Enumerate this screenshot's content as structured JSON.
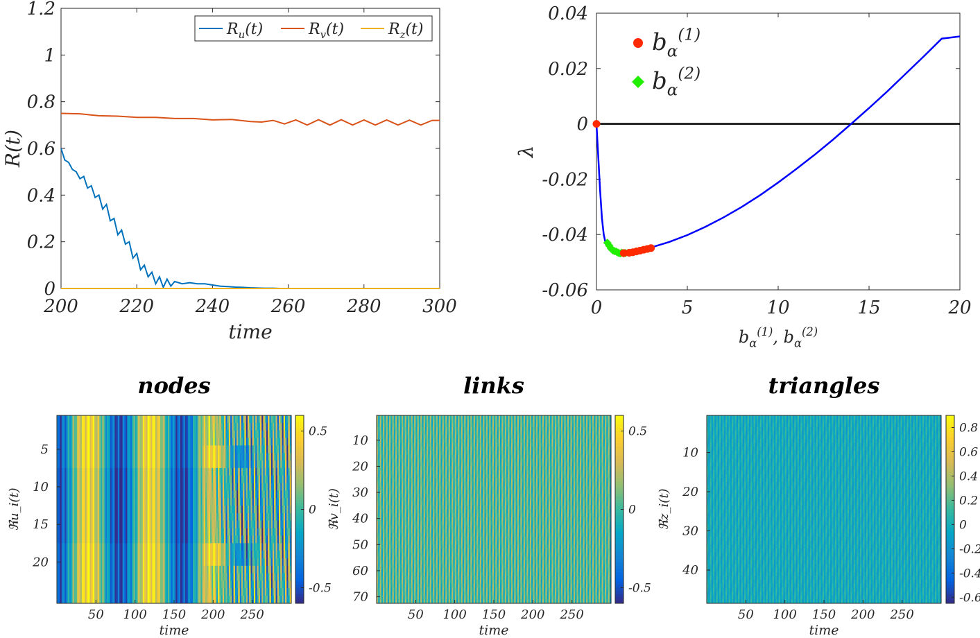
{
  "chart_data": [
    {
      "id": "R",
      "type": "line",
      "title": "",
      "xlabel": "time",
      "ylabel": "R(t)",
      "xlim": [
        200,
        300
      ],
      "ylim": [
        0,
        1.2
      ],
      "xticks": [
        "200",
        "220",
        "240",
        "260",
        "280",
        "300"
      ],
      "yticks": [
        "0",
        "0.2",
        "0.4",
        "0.6",
        "0.8",
        "1",
        "1.2"
      ],
      "legend": {
        "placement": "top-right",
        "entries": [
          "R_u(t)",
          "R_v(t)",
          "R_z(t)"
        ]
      },
      "series": [
        {
          "name": "R_u(t)",
          "color": "#0072BD",
          "x": [
            200,
            201,
            202,
            203,
            204,
            205,
            206,
            207,
            208,
            209,
            210,
            211,
            212,
            213,
            214,
            215,
            216,
            217,
            218,
            219,
            220,
            221,
            222,
            223,
            224,
            225,
            226,
            227,
            228,
            229,
            230,
            232,
            234,
            236,
            238,
            240,
            242,
            244,
            246,
            248,
            250,
            252,
            254,
            256,
            258,
            260,
            270,
            280,
            290,
            300
          ],
          "y": [
            0.6,
            0.55,
            0.54,
            0.51,
            0.5,
            0.47,
            0.48,
            0.43,
            0.44,
            0.39,
            0.4,
            0.34,
            0.36,
            0.29,
            0.3,
            0.23,
            0.25,
            0.19,
            0.2,
            0.13,
            0.15,
            0.08,
            0.1,
            0.05,
            0.07,
            0.02,
            0.05,
            0.005,
            0.04,
            0.01,
            0.03,
            0.02,
            0.025,
            0.02,
            0.02,
            0.015,
            0.01,
            0.008,
            0.006,
            0.005,
            0.003,
            0.002,
            0.001,
            0.001,
            0.0,
            0.0,
            0.0,
            0.0,
            0.0,
            0.0
          ]
        },
        {
          "name": "R_v(t)",
          "color": "#D95319",
          "x": [
            200,
            205,
            210,
            215,
            220,
            225,
            230,
            235,
            240,
            245,
            250,
            253,
            256,
            259,
            262,
            265,
            268,
            271,
            274,
            277,
            280,
            283,
            286,
            289,
            292,
            295,
            298,
            300
          ],
          "y": [
            0.75,
            0.748,
            0.74,
            0.738,
            0.733,
            0.733,
            0.728,
            0.728,
            0.722,
            0.724,
            0.715,
            0.713,
            0.72,
            0.705,
            0.722,
            0.7,
            0.723,
            0.7,
            0.723,
            0.7,
            0.722,
            0.7,
            0.722,
            0.7,
            0.721,
            0.7,
            0.72,
            0.72
          ]
        },
        {
          "name": "R_z(t)",
          "color": "#EDB120",
          "x": [
            200,
            300
          ],
          "y": [
            0.0,
            0.0
          ]
        }
      ]
    },
    {
      "id": "lambda",
      "type": "line",
      "title": "",
      "xlabel": "b_α^(1), b_α^(2)",
      "ylabel": "λ",
      "xlim": [
        0,
        20
      ],
      "ylim": [
        -0.06,
        0.04
      ],
      "xticks": [
        "0",
        "5",
        "10",
        "15",
        "20"
      ],
      "yticks": [
        "-0.06",
        "-0.04",
        "-0.02",
        "0",
        "0.02",
        "0.04"
      ],
      "legend": {
        "placement": "top-left",
        "entries": [
          "b_α^(1)",
          "b_α^(2)"
        ]
      },
      "curve": {
        "name": "λ",
        "color": "#0000FF",
        "x": [
          0,
          0.1,
          0.2,
          0.3,
          0.4,
          0.5,
          0.7,
          1,
          1.5,
          2,
          2.5,
          3,
          4,
          5,
          6,
          7,
          8,
          9,
          10,
          11,
          12,
          13,
          14,
          15,
          16,
          17,
          18,
          19,
          20
        ],
        "y": [
          0,
          -0.012,
          -0.024,
          -0.034,
          -0.04,
          -0.043,
          -0.0455,
          -0.0467,
          -0.0468,
          -0.0462,
          -0.0455,
          -0.0447,
          -0.0427,
          -0.0402,
          -0.0372,
          -0.0338,
          -0.03,
          -0.0258,
          -0.0212,
          -0.0163,
          -0.0112,
          -0.0058,
          -0.0001,
          0.0057,
          0.0117,
          0.018,
          0.0243,
          0.0308,
          0.0316
        ]
      },
      "zero_line": {
        "color": "#000000",
        "y": 0
      },
      "series": [
        {
          "name": "b_α^(1)",
          "color": "#FF2A00",
          "x": [
            0,
            1.5,
            1.8,
            2.0,
            2.2,
            2.4,
            2.6,
            2.8,
            3.0
          ],
          "y": [
            0,
            -0.0467,
            -0.0466,
            -0.0464,
            -0.0461,
            -0.0458,
            -0.0455,
            -0.0452,
            -0.0449
          ]
        },
        {
          "name": "b_α^(2)",
          "color": "#22EE00",
          "x": [
            0.6,
            0.7,
            0.8,
            0.9,
            1.0,
            1.1,
            1.2,
            1.3,
            1.4,
            1.5,
            1.6,
            1.8,
            2.0,
            2.2
          ],
          "y": [
            -0.043,
            -0.044,
            -0.045,
            -0.0457,
            -0.046,
            -0.0462,
            -0.0466,
            -0.0468,
            -0.0466,
            -0.0468,
            -0.0467,
            -0.0466,
            -0.0464,
            -0.0461
          ]
        }
      ]
    },
    {
      "id": "nodes",
      "type": "heatmap",
      "title": "nodes",
      "xlabel": "time",
      "ylabel": "ℜu_i(t)",
      "xlim": [
        0,
        300
      ],
      "ylim": [
        1,
        25
      ],
      "xticks": [
        "50",
        "100",
        "150",
        "200",
        "250"
      ],
      "yticks": [
        "5",
        "10",
        "15",
        "20"
      ],
      "colorbar": {
        "ticks": [
          "0.5",
          "0",
          "-0.5"
        ],
        "range": [
          -0.6,
          0.6
        ]
      }
    },
    {
      "id": "links",
      "type": "heatmap",
      "title": "links",
      "xlabel": "time",
      "ylabel": "ℜv_i(t)",
      "xlim": [
        0,
        300
      ],
      "ylim": [
        1,
        72
      ],
      "xticks": [
        "50",
        "100",
        "150",
        "200",
        "250"
      ],
      "yticks": [
        "10",
        "20",
        "30",
        "40",
        "50",
        "60",
        "70"
      ],
      "colorbar": {
        "ticks": [
          "0.5",
          "0",
          "-0.5"
        ],
        "range": [
          -0.6,
          0.6
        ]
      }
    },
    {
      "id": "triangles",
      "type": "heatmap",
      "title": "triangles",
      "xlabel": "time",
      "ylabel": "ℜz_i(t)",
      "xlim": [
        0,
        300
      ],
      "ylim": [
        1,
        48
      ],
      "xticks": [
        "50",
        "100",
        "150",
        "200",
        "250"
      ],
      "yticks": [
        "10",
        "20",
        "30",
        "40"
      ],
      "colorbar": {
        "ticks": [
          "0.8",
          "0.6",
          "0.4",
          "0.2",
          "0",
          "-0.2",
          "-0.4",
          "-0.6"
        ],
        "range": [
          -0.65,
          0.9
        ]
      }
    }
  ]
}
